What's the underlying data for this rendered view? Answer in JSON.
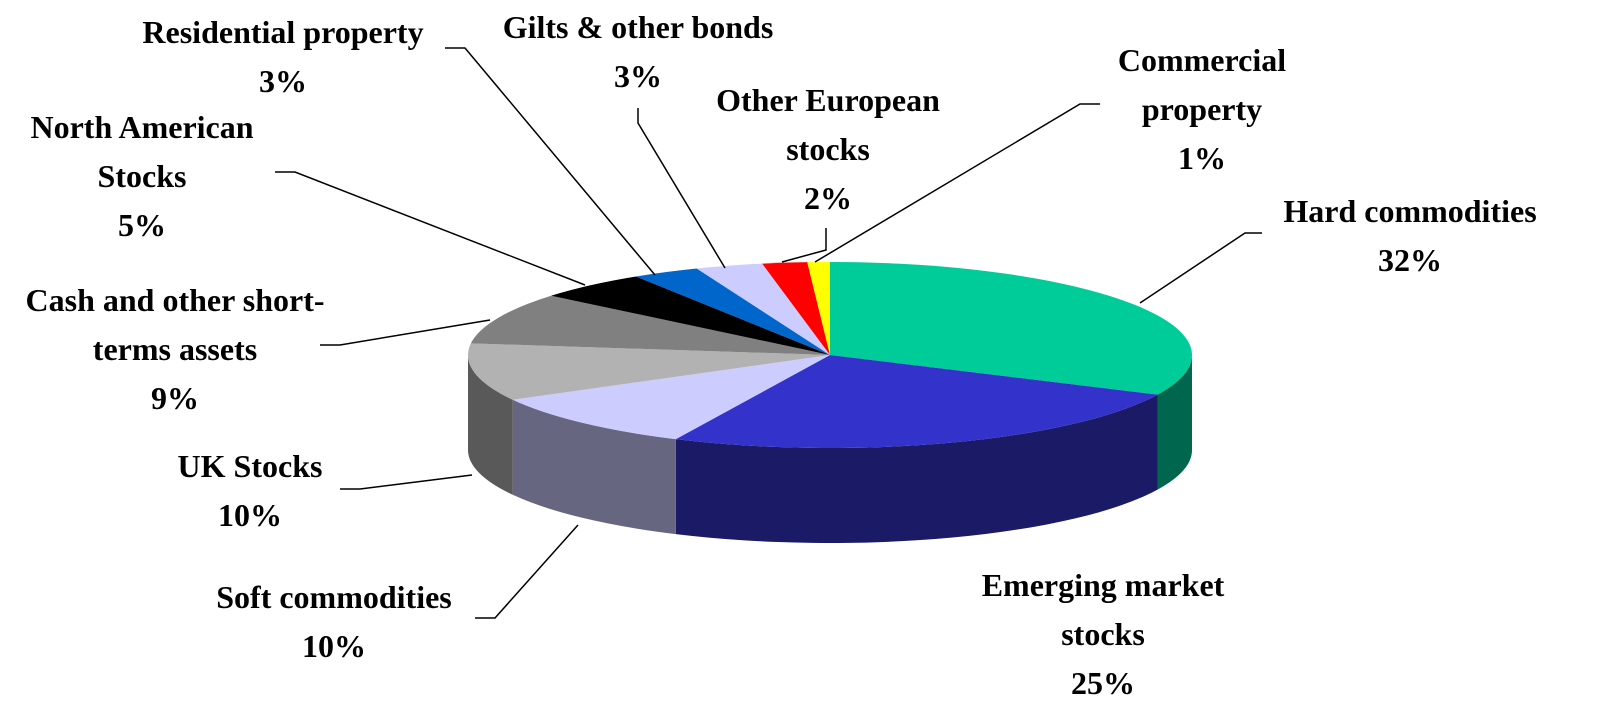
{
  "chart_data": {
    "type": "pie",
    "three_d": true,
    "categories": [
      "Hard commodities",
      "Emerging market stocks",
      "Soft commodities",
      "UK Stocks",
      "Cash and other short-terms assets",
      "North American Stocks",
      "Residential property",
      "Gilts & other bonds",
      "Other European stocks",
      "Commercial property"
    ],
    "values": [
      32,
      25,
      10,
      10,
      9,
      5,
      3,
      3,
      2,
      1
    ],
    "value_labels": [
      "32%",
      "25%",
      "10%",
      "10%",
      "9%",
      "5%",
      "3%",
      "3%",
      "2%",
      "1%"
    ],
    "colors": [
      "#00cc99",
      "#3333cc",
      "#ccccff",
      "#b2b2b2",
      "#808080",
      "#000000",
      "#0066cc",
      "#ccccff",
      "#ff0000",
      "#ffff00"
    ]
  }
}
